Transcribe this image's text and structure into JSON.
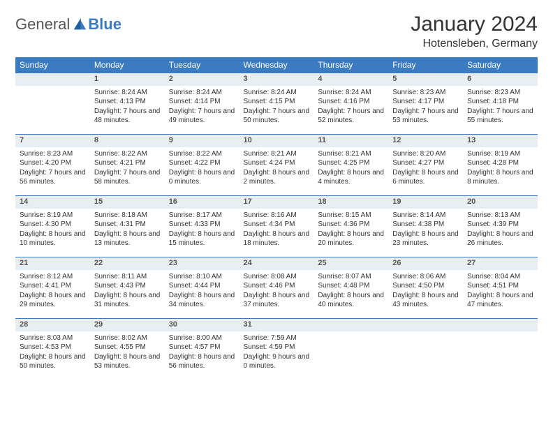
{
  "logo": {
    "text1": "General",
    "text2": "Blue"
  },
  "header": {
    "title": "January 2024",
    "location": "Hotensleben, Germany"
  },
  "colors": {
    "accent": "#3b7bbf",
    "numrow_bg": "#e9eef2",
    "text": "#333333",
    "logo_gray": "#555555"
  },
  "daysOfWeek": [
    "Sunday",
    "Monday",
    "Tuesday",
    "Wednesday",
    "Thursday",
    "Friday",
    "Saturday"
  ],
  "weeks": [
    {
      "nums": [
        "",
        "1",
        "2",
        "3",
        "4",
        "5",
        "6"
      ],
      "cells": [
        "",
        "Sunrise: 8:24 AM\nSunset: 4:13 PM\nDaylight: 7 hours and 48 minutes.",
        "Sunrise: 8:24 AM\nSunset: 4:14 PM\nDaylight: 7 hours and 49 minutes.",
        "Sunrise: 8:24 AM\nSunset: 4:15 PM\nDaylight: 7 hours and 50 minutes.",
        "Sunrise: 8:24 AM\nSunset: 4:16 PM\nDaylight: 7 hours and 52 minutes.",
        "Sunrise: 8:23 AM\nSunset: 4:17 PM\nDaylight: 7 hours and 53 minutes.",
        "Sunrise: 8:23 AM\nSunset: 4:18 PM\nDaylight: 7 hours and 55 minutes."
      ]
    },
    {
      "nums": [
        "7",
        "8",
        "9",
        "10",
        "11",
        "12",
        "13"
      ],
      "cells": [
        "Sunrise: 8:23 AM\nSunset: 4:20 PM\nDaylight: 7 hours and 56 minutes.",
        "Sunrise: 8:22 AM\nSunset: 4:21 PM\nDaylight: 7 hours and 58 minutes.",
        "Sunrise: 8:22 AM\nSunset: 4:22 PM\nDaylight: 8 hours and 0 minutes.",
        "Sunrise: 8:21 AM\nSunset: 4:24 PM\nDaylight: 8 hours and 2 minutes.",
        "Sunrise: 8:21 AM\nSunset: 4:25 PM\nDaylight: 8 hours and 4 minutes.",
        "Sunrise: 8:20 AM\nSunset: 4:27 PM\nDaylight: 8 hours and 6 minutes.",
        "Sunrise: 8:19 AM\nSunset: 4:28 PM\nDaylight: 8 hours and 8 minutes."
      ]
    },
    {
      "nums": [
        "14",
        "15",
        "16",
        "17",
        "18",
        "19",
        "20"
      ],
      "cells": [
        "Sunrise: 8:19 AM\nSunset: 4:30 PM\nDaylight: 8 hours and 10 minutes.",
        "Sunrise: 8:18 AM\nSunset: 4:31 PM\nDaylight: 8 hours and 13 minutes.",
        "Sunrise: 8:17 AM\nSunset: 4:33 PM\nDaylight: 8 hours and 15 minutes.",
        "Sunrise: 8:16 AM\nSunset: 4:34 PM\nDaylight: 8 hours and 18 minutes.",
        "Sunrise: 8:15 AM\nSunset: 4:36 PM\nDaylight: 8 hours and 20 minutes.",
        "Sunrise: 8:14 AM\nSunset: 4:38 PM\nDaylight: 8 hours and 23 minutes.",
        "Sunrise: 8:13 AM\nSunset: 4:39 PM\nDaylight: 8 hours and 26 minutes."
      ]
    },
    {
      "nums": [
        "21",
        "22",
        "23",
        "24",
        "25",
        "26",
        "27"
      ],
      "cells": [
        "Sunrise: 8:12 AM\nSunset: 4:41 PM\nDaylight: 8 hours and 29 minutes.",
        "Sunrise: 8:11 AM\nSunset: 4:43 PM\nDaylight: 8 hours and 31 minutes.",
        "Sunrise: 8:10 AM\nSunset: 4:44 PM\nDaylight: 8 hours and 34 minutes.",
        "Sunrise: 8:08 AM\nSunset: 4:46 PM\nDaylight: 8 hours and 37 minutes.",
        "Sunrise: 8:07 AM\nSunset: 4:48 PM\nDaylight: 8 hours and 40 minutes.",
        "Sunrise: 8:06 AM\nSunset: 4:50 PM\nDaylight: 8 hours and 43 minutes.",
        "Sunrise: 8:04 AM\nSunset: 4:51 PM\nDaylight: 8 hours and 47 minutes."
      ]
    },
    {
      "nums": [
        "28",
        "29",
        "30",
        "31",
        "",
        "",
        ""
      ],
      "cells": [
        "Sunrise: 8:03 AM\nSunset: 4:53 PM\nDaylight: 8 hours and 50 minutes.",
        "Sunrise: 8:02 AM\nSunset: 4:55 PM\nDaylight: 8 hours and 53 minutes.",
        "Sunrise: 8:00 AM\nSunset: 4:57 PM\nDaylight: 8 hours and 56 minutes.",
        "Sunrise: 7:59 AM\nSunset: 4:59 PM\nDaylight: 9 hours and 0 minutes.",
        "",
        "",
        ""
      ]
    }
  ]
}
